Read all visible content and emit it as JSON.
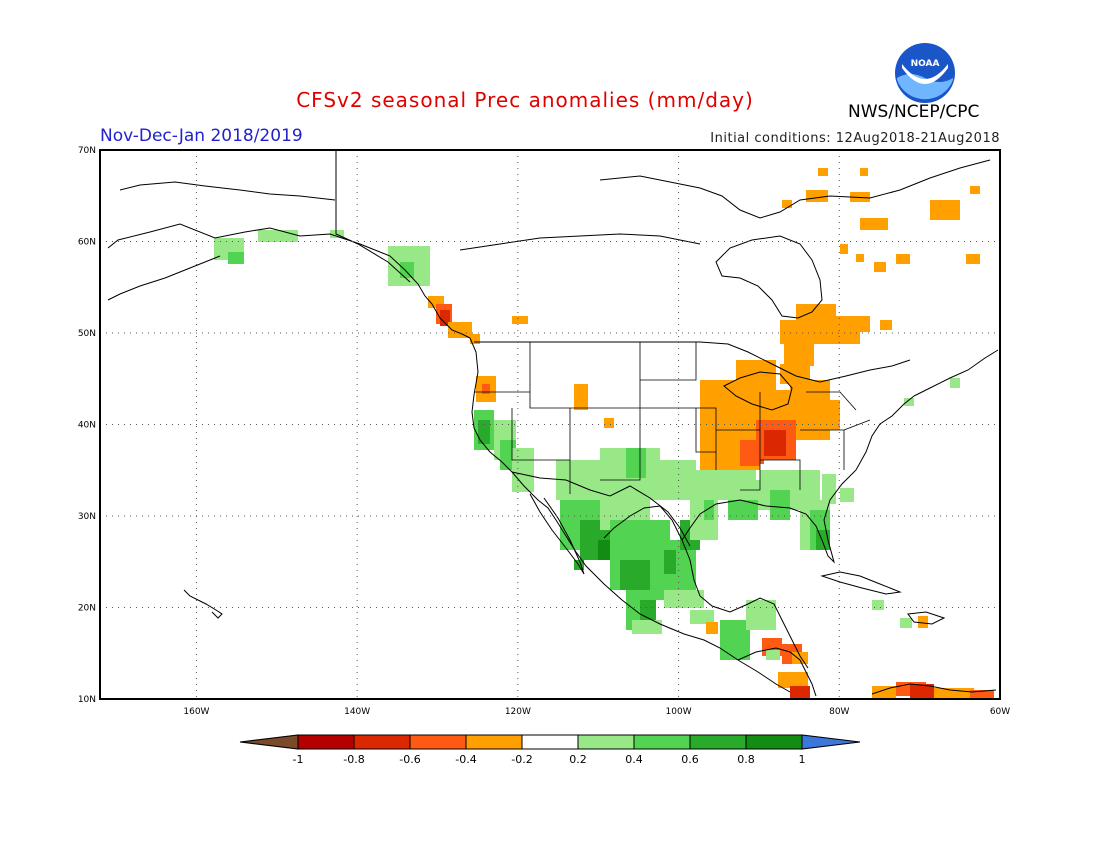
{
  "header": {
    "title": "CFSv2 seasonal Prec anomalies (mm/day)",
    "period": "Nov-Dec-Jan 2018/2019",
    "initial_conditions": "Initial conditions: 12Aug2018-21Aug2018",
    "agency": "NWS/NCEP/CPC",
    "logo_text": "NOAA"
  },
  "map": {
    "projection": "lat-lon",
    "lon_range": [
      -172,
      -60
    ],
    "lat_range": [
      10,
      70
    ],
    "grid": "dotted",
    "lat_labels": [
      "70N",
      "60N",
      "50N",
      "40N",
      "30N",
      "20N",
      "10N"
    ],
    "lon_labels": [
      "160W",
      "140W",
      "120W",
      "100W",
      "80W",
      "60W"
    ]
  },
  "colorbar": {
    "tick_labels": [
      "-1",
      "-0.8",
      "-0.6",
      "-0.4",
      "-0.2",
      "0.2",
      "0.4",
      "0.6",
      "0.8",
      "1"
    ],
    "colors": {
      "below_-1": "#7a4a2a",
      "-1_to_-0.8": "#b40000",
      "-0.8_to_-0.6": "#dc2800",
      "-0.6_to_-0.4": "#ff5a14",
      "-0.4_to_-0.2": "#ffa000",
      "-0.2_to_0.2": "#ffffff",
      "0.2_to_0.4": "#98e888",
      "0.4_to_0.6": "#52d452",
      "0.6_to_0.8": "#2aaa2a",
      "0.8_to_1": "#128c12",
      "above_1": "#3c78dc"
    }
  }
}
